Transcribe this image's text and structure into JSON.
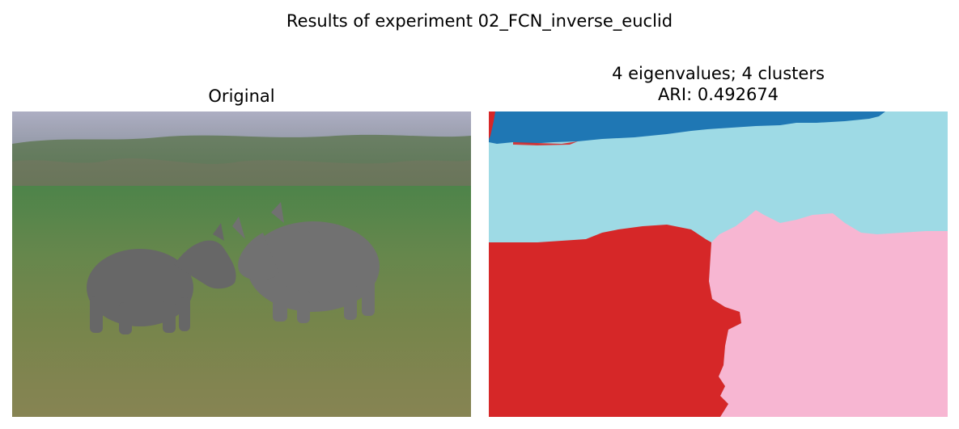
{
  "figure": {
    "suptitle": "Results of experiment 02_FCN_inverse_euclid"
  },
  "panels": {
    "original": {
      "title": "Original",
      "image": "photo of two rhinoceroses facing each other on a grassy field"
    },
    "segmentation": {
      "title_line1": "4 eigenvalues; 4 clusters",
      "title_line2": "ARI: 0.492674",
      "cluster_colors": [
        "#1f77b4",
        "#9edae5",
        "#d62728",
        "#f7b6d2"
      ]
    }
  }
}
